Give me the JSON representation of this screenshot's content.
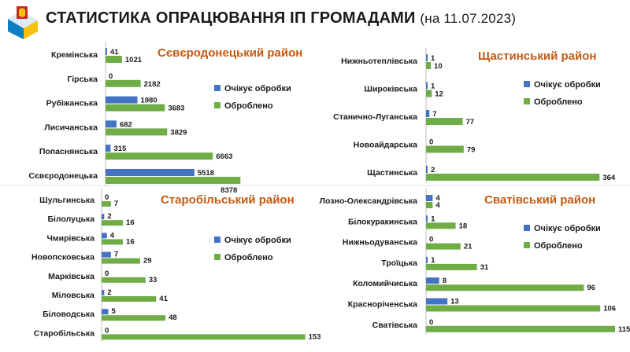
{
  "header": {
    "title": "СТАТИСТИКА ОПРАЦЮВАННЯ ІП ГРОМАДАМИ",
    "date": "(на 11.07.2023)"
  },
  "colors": {
    "pending": "#4472c4",
    "processed": "#70ad47",
    "title": "#c55a11"
  },
  "chart_data": [
    {
      "type": "bar",
      "orientation": "horizontal",
      "title": "Сєвєродонецький район",
      "categories": [
        "Кремінська",
        "Гірська",
        "Рубіжанська",
        "Лисичанська",
        "Попаснянська",
        "Сєвєродонецька"
      ],
      "series": [
        {
          "name": "Очікує обробки",
          "values": [
            41,
            0,
            1980,
            682,
            315,
            5518
          ]
        },
        {
          "name": "Оброблено",
          "values": [
            1021,
            2182,
            3683,
            3829,
            6663,
            8378
          ]
        }
      ],
      "xlim": [
        0,
        8900
      ],
      "legend": "right"
    },
    {
      "type": "bar",
      "orientation": "horizontal",
      "title": "Щастинський район",
      "categories": [
        "Нижньотеплівська",
        "Широківська",
        "Станично-Луганська",
        "Новоайдарська",
        "Щастинська"
      ],
      "series": [
        {
          "name": "Очікує обробки",
          "values": [
            1,
            1,
            7,
            0,
            2
          ]
        },
        {
          "name": "Оброблено",
          "values": [
            10,
            12,
            77,
            79,
            364
          ]
        }
      ],
      "xlim": [
        0,
        380
      ],
      "legend": "right"
    },
    {
      "type": "bar",
      "orientation": "horizontal",
      "title": "Старобільський район",
      "categories": [
        "Шульгинська",
        "Білолуцька",
        "Чмирівська",
        "Новопсковська",
        "Марківська",
        "Міловська",
        "Біловодська",
        "Старобільська"
      ],
      "series": [
        {
          "name": "Очікує обробки",
          "values": [
            0,
            2,
            4,
            7,
            0,
            2,
            5,
            0
          ]
        },
        {
          "name": "Оброблено",
          "values": [
            7,
            16,
            16,
            29,
            33,
            41,
            48,
            153
          ]
        }
      ],
      "xlim": [
        0,
        155
      ],
      "legend": "right"
    },
    {
      "type": "bar",
      "orientation": "horizontal",
      "title": "Сватівський район",
      "categories": [
        "Лозно-Олександрівська",
        "Білокуракинська",
        "Нижньодуванська",
        "Троїцька",
        "Коломийчиська",
        "Красноріченська",
        "Сватівська"
      ],
      "series": [
        {
          "name": "Очікує обробки",
          "values": [
            4,
            1,
            0,
            1,
            8,
            13,
            0
          ]
        },
        {
          "name": "Оброблено",
          "values": [
            4,
            18,
            21,
            31,
            96,
            106,
            115
          ]
        }
      ],
      "xlim": [
        0,
        115
      ],
      "legend": "right"
    }
  ]
}
